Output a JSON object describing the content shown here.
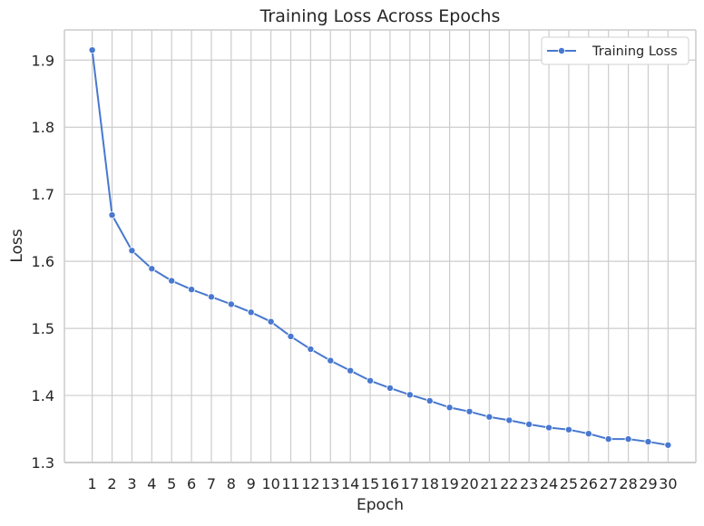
{
  "chart_data": {
    "type": "line",
    "title": "Training Loss Across Epochs",
    "xlabel": "Epoch",
    "ylabel": "Loss",
    "x": [
      1,
      2,
      3,
      4,
      5,
      6,
      7,
      8,
      9,
      10,
      11,
      12,
      13,
      14,
      15,
      16,
      17,
      18,
      19,
      20,
      21,
      22,
      23,
      24,
      25,
      26,
      27,
      28,
      29,
      30
    ],
    "x_tick_labels": [
      "1",
      "2",
      "3",
      "4",
      "5",
      "6",
      "7",
      "8",
      "9",
      "10",
      "11",
      "12",
      "13",
      "14",
      "15",
      "16",
      "17",
      "18",
      "19",
      "20",
      "21",
      "22",
      "23",
      "24",
      "25",
      "26",
      "27",
      "28",
      "29",
      "30"
    ],
    "xlim": [
      -0.4,
      31.4
    ],
    "ylim": [
      1.3,
      1.945
    ],
    "y_ticks": [
      1.3,
      1.4,
      1.5,
      1.6,
      1.7,
      1.8,
      1.9
    ],
    "y_tick_labels": [
      "1.3",
      "1.4",
      "1.5",
      "1.6",
      "1.7",
      "1.8",
      "1.9"
    ],
    "grid": true,
    "legend_position": "top-right",
    "series": [
      {
        "name": "Training Loss",
        "color": "#4878cf",
        "marker": "circle",
        "values": [
          1.915,
          1.669,
          1.616,
          1.589,
          1.571,
          1.558,
          1.547,
          1.536,
          1.524,
          1.51,
          1.488,
          1.469,
          1.452,
          1.437,
          1.422,
          1.411,
          1.401,
          1.392,
          1.382,
          1.376,
          1.368,
          1.363,
          1.357,
          1.352,
          1.349,
          1.343,
          1.335,
          1.335,
          1.331,
          1.326
        ]
      }
    ]
  }
}
